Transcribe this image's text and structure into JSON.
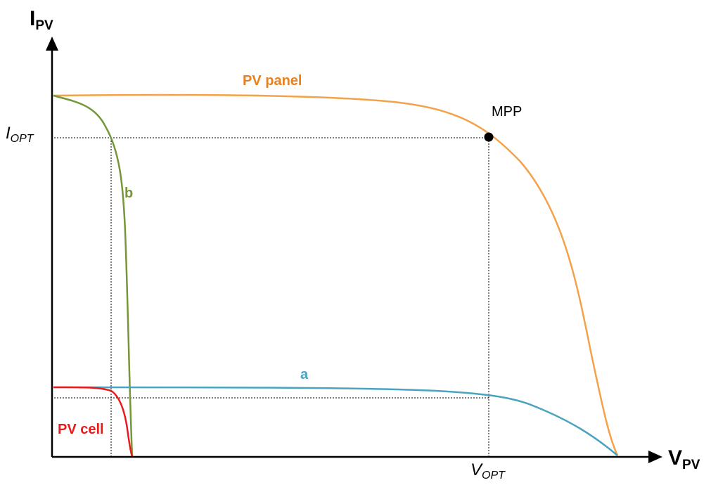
{
  "axes": {
    "y_title": "I",
    "y_sub": "PV",
    "x_title": "V",
    "x_sub": "PV"
  },
  "ticks": {
    "i_opt_main": "I",
    "i_opt_sub": "OPT",
    "v_opt_main": "V",
    "v_opt_sub": "OPT"
  },
  "labels": {
    "pv_panel": "PV panel",
    "mpp": "MPP",
    "curve_b": "b",
    "curve_a": "a",
    "pv_cell": "PV cell"
  },
  "colors": {
    "axis": "#000000",
    "pv_panel": "#f4a24a",
    "pv_panel_label": "#e8801f",
    "curve_b": "#76963a",
    "curve_a": "#4aa3bf",
    "pv_cell": "#e81a1a",
    "guide": "#000000"
  }
}
